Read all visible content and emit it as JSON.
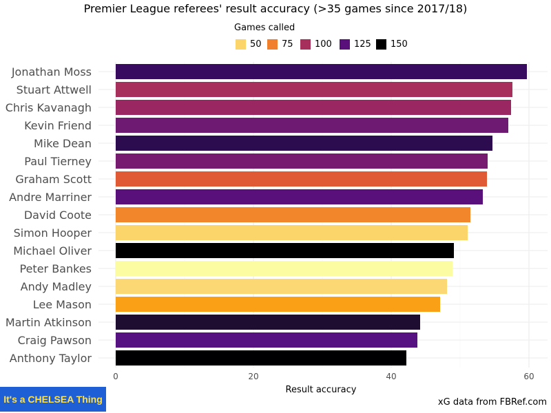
{
  "title": "Premier League referees' result accuracy (>35 games since 2017/18)",
  "legend": {
    "title": "Games called",
    "items": [
      {
        "label": "50",
        "color": "#fcd56a"
      },
      {
        "label": "75",
        "color": "#f1802c"
      },
      {
        "label": "100",
        "color": "#a62f5b"
      },
      {
        "label": "125",
        "color": "#5a107b"
      },
      {
        "label": "150",
        "color": "#000000"
      }
    ]
  },
  "source": "xG data from FBRef.com",
  "logo_text": "It's a CHELSEA Thing",
  "chart_data": {
    "type": "bar",
    "orientation": "horizontal",
    "xlabel": "Result accuracy",
    "xlim": [
      0,
      62
    ],
    "xticks": [
      0,
      20,
      40,
      60
    ],
    "grid": true,
    "legend_position": "top",
    "categories": [
      "Jonathan Moss",
      "Stuart Attwell",
      "Chris Kavanagh",
      "Kevin Friend",
      "Mike Dean",
      "Paul Tierney",
      "Graham Scott",
      "Andre Marriner",
      "David Coote",
      "Simon Hooper",
      "Michael Oliver",
      "Peter Bankes",
      "Andy Madley",
      "Lee Mason",
      "Martin Atkinson",
      "Craig Pawson",
      "Anthony Taylor"
    ],
    "values": [
      59.7,
      57.6,
      57.4,
      57.0,
      54.7,
      54.0,
      53.9,
      53.3,
      51.5,
      51.1,
      49.1,
      48.9,
      48.1,
      47.1,
      44.2,
      43.8,
      42.2
    ],
    "colors": [
      "#380a60",
      "#a62f5b",
      "#9a2762",
      "#6f1a72",
      "#2c0b4e",
      "#761b6f",
      "#e05a35",
      "#5a107b",
      "#f1872a",
      "#fcd56a",
      "#000000",
      "#fcfca2",
      "#fbd873",
      "#f9a016",
      "#1f0d31",
      "#561280",
      "#000003"
    ]
  }
}
